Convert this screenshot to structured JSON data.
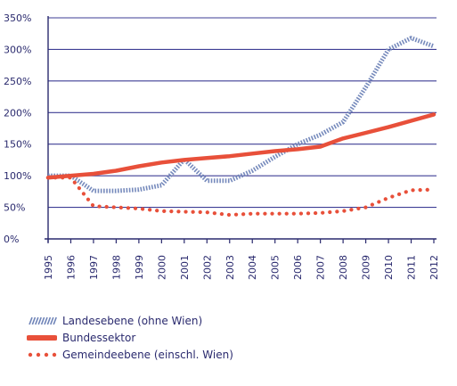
{
  "colors": {
    "axis": "#2a2a6e",
    "grid": "#2a2a8a",
    "landesebene": "#6f84b8",
    "bundessektor": "#e8503a",
    "gemeindeebene": "#e8503a"
  },
  "chart_data": {
    "type": "line",
    "title": "",
    "xlabel": "",
    "ylabel": "",
    "x": [
      "1995",
      "1996",
      "1997",
      "1998",
      "1999",
      "2000",
      "2001",
      "2002",
      "2003",
      "2004",
      "2005",
      "2006",
      "2007",
      "2008",
      "2009",
      "2010",
      "2011",
      "2012"
    ],
    "ylim": [
      0,
      350
    ],
    "yticks": [
      "0%",
      "50%",
      "100%",
      "150%",
      "200%",
      "250%",
      "300%",
      "350%"
    ],
    "ytick_values": [
      0,
      50,
      100,
      150,
      200,
      250,
      300,
      350
    ],
    "grid": true,
    "legend_position": "bottom-left",
    "series": [
      {
        "key": "landesebene",
        "name": "Landesebene (ohne Wien)",
        "style": "hatched",
        "values": [
          100,
          100,
          76,
          76,
          78,
          85,
          126,
          92,
          92,
          108,
          130,
          150,
          165,
          185,
          240,
          300,
          318,
          305
        ]
      },
      {
        "key": "bundessektor",
        "name": "Bundessektor",
        "style": "solid",
        "values": [
          97,
          100,
          103,
          108,
          115,
          121,
          125,
          128,
          131,
          135,
          139,
          142,
          146,
          159,
          168,
          177,
          187,
          197
        ]
      },
      {
        "key": "gemeindeebene",
        "name": "Gemeindeebene (einschl. Wien)",
        "style": "dotted",
        "values": [
          97,
          97,
          52,
          50,
          48,
          44,
          43,
          42,
          38,
          40,
          40,
          40,
          41,
          44,
          50,
          65,
          77,
          78
        ]
      }
    ]
  }
}
